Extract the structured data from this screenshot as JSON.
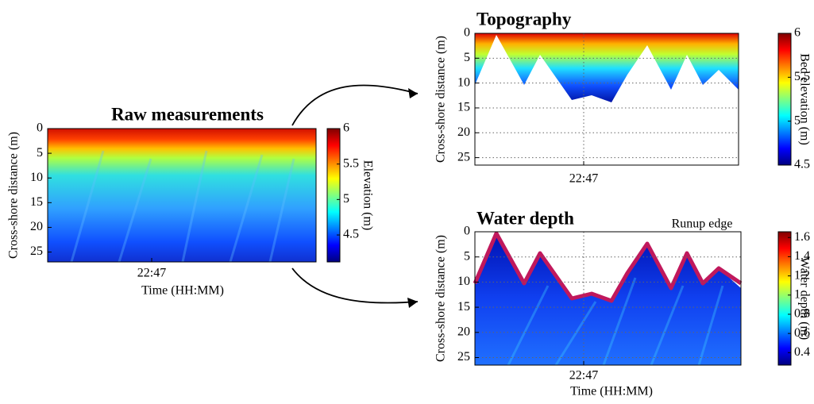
{
  "chart_data": [
    {
      "type": "heatmap",
      "title": "Raw measurements",
      "ylabel": "Cross-shore distance (m)",
      "xlabel": "Time (HH:MM)",
      "xticks": [
        "22:47"
      ],
      "ylim": [
        0,
        27
      ],
      "yticks": [
        0,
        5,
        10,
        15,
        20,
        25
      ],
      "y_inverted": true,
      "grid": false,
      "colormap": "jet",
      "colorbar": {
        "label": "Elevation (m)",
        "lim": [
          4.12,
          6
        ],
        "ticks": [
          4.5,
          5,
          5.5,
          6
        ]
      }
    },
    {
      "type": "heatmap",
      "title": "Topography",
      "ylabel": "Cross-shore distance (m)",
      "xticks": [
        "22:47"
      ],
      "ylim": [
        0,
        26.5
      ],
      "yticks": [
        0,
        5,
        10,
        15,
        20,
        25
      ],
      "y_inverted": true,
      "grid": true,
      "colormap": "jet",
      "colorbar": {
        "label": "Bed elevation (m)",
        "lim": [
          4.5,
          6
        ],
        "ticks": [
          4.5,
          5,
          5.5,
          6
        ]
      }
    },
    {
      "type": "heatmap",
      "title": "Water depth",
      "ylabel": "Cross-shore distance (m)",
      "xlabel": "Time (HH:MM)",
      "xticks": [
        "22:47"
      ],
      "ylim": [
        0,
        26.5
      ],
      "yticks": [
        0,
        5,
        10,
        15,
        20,
        25
      ],
      "y_inverted": true,
      "grid": true,
      "annotation": "Runup edge",
      "line_color": "#c0185c",
      "colormap": "jet",
      "colorbar": {
        "label": "Water depth (m)",
        "lim": [
          0.27,
          1.66
        ],
        "ticks": [
          0.4,
          0.6,
          0.8,
          1,
          1.2,
          1.4,
          1.6
        ]
      }
    }
  ]
}
